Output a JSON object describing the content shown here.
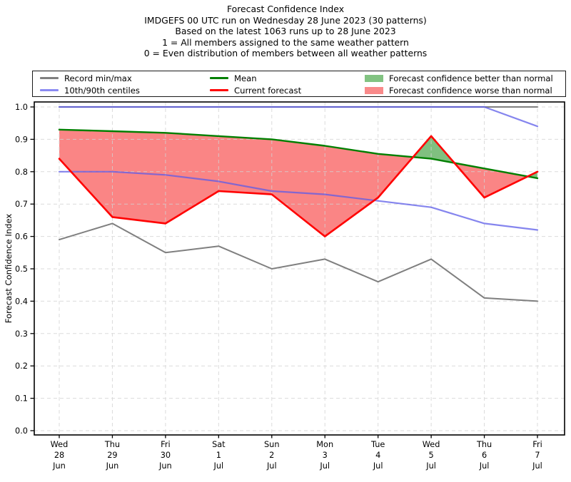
{
  "title": {
    "line1": "Forecast Confidence Index",
    "line2": "IMDGEFS 00 UTC run on Wednesday 28 June 2023 (30 patterns)",
    "line3": "Based on the latest 1063 runs up to 28 June 2023",
    "line4": "1 = All members assigned to the same weather pattern",
    "line5": "0 = Even distribution of members between all weather patterns"
  },
  "legend": {
    "items": [
      {
        "label": "Record min/max",
        "type": "line",
        "color": "#7f7f7f"
      },
      {
        "label": "10th/90th centiles",
        "type": "line",
        "color": "#8a8af2"
      },
      {
        "label": "Mean",
        "type": "line",
        "color": "#007f00"
      },
      {
        "label": "Current forecast",
        "type": "line",
        "color": "#ff0000"
      },
      {
        "label": "Forecast confidence better than normal",
        "type": "patch",
        "color": "#82c382"
      },
      {
        "label": "Forecast confidence worse than normal",
        "type": "patch",
        "color": "#f98a8a"
      }
    ]
  },
  "chart_data": {
    "type": "line",
    "title": "Forecast Confidence Index",
    "ylabel": "Forecast Confidence Index",
    "xlabel": "",
    "ylim": [
      0.0,
      1.0
    ],
    "yticks": [
      0.0,
      0.1,
      0.2,
      0.3,
      0.4,
      0.5,
      0.6,
      0.7,
      0.8,
      0.9,
      1.0
    ],
    "grid": true,
    "grid_style": "dashed",
    "legend_position": "top",
    "categories": [
      "Wed 28 Jun",
      "Thu 29 Jun",
      "Fri 30 Jun",
      "Sat 1 Jul",
      "Sun 2 Jul",
      "Mon 3 Jul",
      "Tue 4 Jul",
      "Wed 5 Jul",
      "Thu 6 Jul",
      "Fri 7 Jul"
    ],
    "series": [
      {
        "key": "record_max",
        "name": "Record max",
        "color": "#7f7f7f",
        "width": 2,
        "opacity": 1,
        "values": [
          1.0,
          1.0,
          1.0,
          1.0,
          1.0,
          1.0,
          1.0,
          1.0,
          1.0,
          1.0
        ]
      },
      {
        "key": "record_min",
        "name": "Record min",
        "color": "#7f7f7f",
        "width": 2,
        "opacity": 1,
        "values": [
          0.59,
          0.64,
          0.55,
          0.57,
          0.5,
          0.53,
          0.46,
          0.53,
          0.41,
          0.4
        ]
      },
      {
        "key": "centile_90",
        "name": "90th centile",
        "color": "#5c5ce8",
        "width": 2.2,
        "opacity": 0.75,
        "values": [
          1.0,
          1.0,
          1.0,
          1.0,
          1.0,
          1.0,
          1.0,
          1.0,
          1.0,
          0.94
        ]
      },
      {
        "key": "centile_10",
        "name": "10th centile",
        "color": "#5c5ce8",
        "width": 2.2,
        "opacity": 0.75,
        "values": [
          0.8,
          0.8,
          0.79,
          0.77,
          0.74,
          0.73,
          0.71,
          0.69,
          0.64,
          0.62
        ]
      },
      {
        "key": "mean",
        "name": "Mean",
        "color": "#007f00",
        "width": 2.4,
        "opacity": 1,
        "values": [
          0.93,
          0.925,
          0.92,
          0.91,
          0.9,
          0.88,
          0.855,
          0.84,
          0.81,
          0.78
        ]
      },
      {
        "key": "current",
        "name": "Current forecast",
        "color": "#ff0000",
        "width": 2.6,
        "opacity": 1,
        "values": [
          0.84,
          0.66,
          0.64,
          0.74,
          0.73,
          0.6,
          0.72,
          0.91,
          0.72,
          0.8
        ]
      }
    ],
    "fill_between": {
      "upper": "current",
      "lower": "mean",
      "better_color": "#80c080",
      "worse_color": "#fa8585",
      "better_meaning": "Forecast confidence better than normal",
      "worse_meaning": "Forecast confidence worse than normal"
    }
  }
}
